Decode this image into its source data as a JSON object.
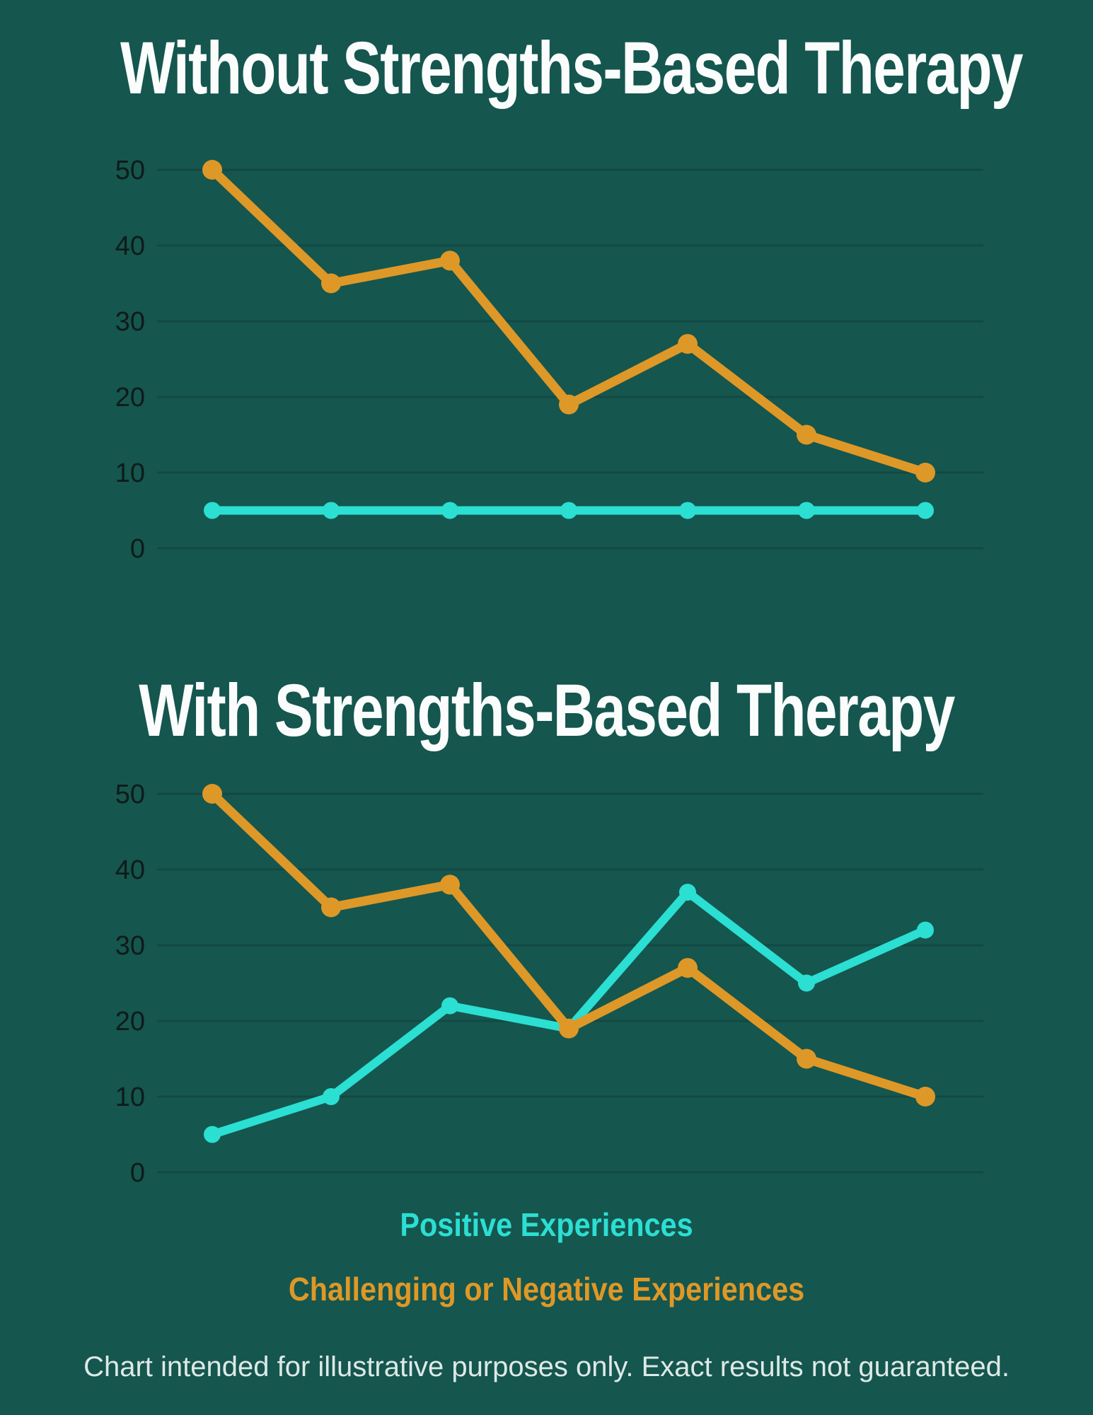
{
  "page": {
    "background_color": "#15564F",
    "footer": "Chart intended for illustrative purposes only. Exact results not guaranteed."
  },
  "colors": {
    "positive_series": "#2BDFD2",
    "negative_series": "#DE9827",
    "title_text": "#FBFDFC",
    "axis_tick_label": "#0E1B19",
    "gridline": "rgba(0,0,0,0.14)",
    "footer_text": "#E9F1EF"
  },
  "legend": {
    "items": [
      {
        "label": "Positive Experiences",
        "color": "#2BDFD2"
      },
      {
        "label": "Challenging or Negative Experiences",
        "color": "#DE9827"
      }
    ]
  },
  "chart_data": [
    {
      "type": "line",
      "title": "Without Strengths-Based Therapy",
      "xlabel": "",
      "ylabel": "",
      "x_tick_labels": [],
      "yticks": [
        0,
        10,
        20,
        30,
        40,
        50
      ],
      "ylim": [
        0,
        50
      ],
      "grid": "horizontal",
      "legend_position": "shared-below-second-chart",
      "series": [
        {
          "name": "Positive Experiences",
          "color": "#2BDFD2",
          "values": [
            5,
            5,
            5,
            5,
            5,
            5,
            5
          ]
        },
        {
          "name": "Challenging or Negative Experiences",
          "color": "#DE9827",
          "values": [
            50,
            35,
            38,
            19,
            27,
            15,
            10
          ]
        }
      ]
    },
    {
      "type": "line",
      "title": "With Strengths-Based Therapy",
      "xlabel": "",
      "ylabel": "",
      "x_tick_labels": [],
      "yticks": [
        0,
        10,
        20,
        30,
        40,
        50
      ],
      "ylim": [
        0,
        50
      ],
      "grid": "horizontal",
      "legend_position": "shared-below-second-chart",
      "series": [
        {
          "name": "Positive Experiences",
          "color": "#2BDFD2",
          "values": [
            5,
            10,
            22,
            19,
            37,
            25,
            32
          ]
        },
        {
          "name": "Challenging or Negative Experiences",
          "color": "#DE9827",
          "values": [
            50,
            35,
            38,
            19,
            27,
            15,
            10
          ]
        }
      ]
    }
  ]
}
